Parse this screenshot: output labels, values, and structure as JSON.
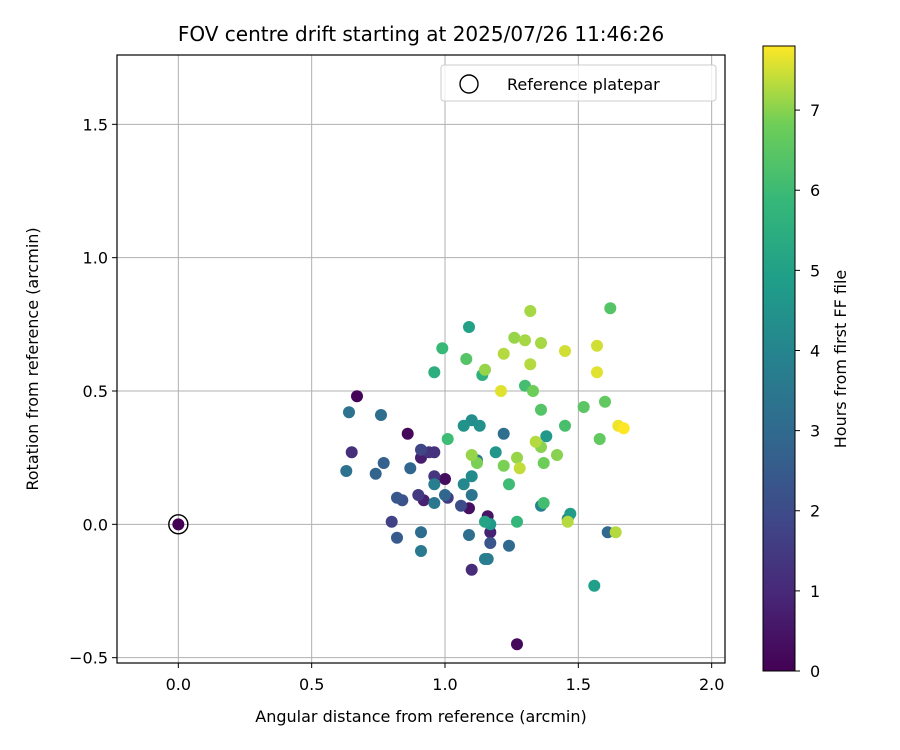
{
  "chart_data": {
    "type": "scatter",
    "title": "FOV centre drift starting at 2025/07/26 11:46:26",
    "xlabel": "Angular distance from reference (arcmin)",
    "ylabel": "Rotation from reference (arcmin)",
    "xlim": [
      -0.23,
      2.05
    ],
    "ylim": [
      -0.52,
      1.76
    ],
    "xticks": [
      0.0,
      0.5,
      1.0,
      1.5,
      2.0
    ],
    "xtick_labels": [
      "0.0",
      "0.5",
      "1.0",
      "1.5",
      "2.0"
    ],
    "yticks": [
      -0.5,
      0.0,
      0.5,
      1.0,
      1.5
    ],
    "ytick_labels": [
      "−0.5",
      "0.0",
      "0.5",
      "1.0",
      "1.5"
    ],
    "grid": true,
    "legend": {
      "position": "top-right",
      "entries": [
        "Reference platepar"
      ]
    },
    "reference": {
      "x": 0.0,
      "y": 0.0,
      "h": 0.0
    },
    "colorbar": {
      "label": "Hours from first FF file",
      "colormap": "viridis",
      "range": [
        0,
        7.8
      ],
      "ticks": [
        0,
        1,
        2,
        3,
        4,
        5,
        6,
        7
      ],
      "tick_labels": [
        "0",
        "1",
        "2",
        "3",
        "4",
        "5",
        "6",
        "7"
      ]
    },
    "series": [
      {
        "color_by": "hours",
        "points": [
          {
            "x": 0.67,
            "y": 0.48,
            "h": 0.1
          },
          {
            "x": 0.86,
            "y": 0.34,
            "h": 0.2
          },
          {
            "x": 1.27,
            "y": -0.45,
            "h": 0.2
          },
          {
            "x": 1.0,
            "y": 0.17,
            "h": 0.3
          },
          {
            "x": 1.09,
            "y": 0.06,
            "h": 0.4
          },
          {
            "x": 1.16,
            "y": 0.03,
            "h": 0.5
          },
          {
            "x": 0.91,
            "y": 0.25,
            "h": 0.7
          },
          {
            "x": 0.92,
            "y": 0.09,
            "h": 0.8
          },
          {
            "x": 1.17,
            "y": -0.03,
            "h": 0.8
          },
          {
            "x": 1.1,
            "y": -0.17,
            "h": 1.1
          },
          {
            "x": 0.65,
            "y": 0.27,
            "h": 1.2
          },
          {
            "x": 0.94,
            "y": 0.27,
            "h": 1.3
          },
          {
            "x": 0.96,
            "y": 0.27,
            "h": 1.3
          },
          {
            "x": 0.96,
            "y": 0.18,
            "h": 1.4
          },
          {
            "x": 0.9,
            "y": 0.11,
            "h": 1.5
          },
          {
            "x": 1.01,
            "y": 0.1,
            "h": 1.5
          },
          {
            "x": 0.8,
            "y": 0.01,
            "h": 1.7
          },
          {
            "x": 0.91,
            "y": 0.28,
            "h": 1.8
          },
          {
            "x": 1.06,
            "y": 0.07,
            "h": 2.0
          },
          {
            "x": 0.84,
            "y": 0.09,
            "h": 2.2
          },
          {
            "x": 1.17,
            "y": -0.07,
            "h": 2.3
          },
          {
            "x": 0.82,
            "y": 0.1,
            "h": 2.4
          },
          {
            "x": 0.82,
            "y": -0.05,
            "h": 2.5
          },
          {
            "x": 0.77,
            "y": 0.23,
            "h": 2.7
          },
          {
            "x": 0.74,
            "y": 0.19,
            "h": 2.8
          },
          {
            "x": 0.87,
            "y": 0.21,
            "h": 2.9
          },
          {
            "x": 1.0,
            "y": 0.11,
            "h": 2.9
          },
          {
            "x": 1.24,
            "y": -0.08,
            "h": 3.0
          },
          {
            "x": 1.61,
            "y": -0.03,
            "h": 3.0
          },
          {
            "x": 0.91,
            "y": -0.03,
            "h": 3.1
          },
          {
            "x": 1.09,
            "y": -0.04,
            "h": 3.2
          },
          {
            "x": 1.22,
            "y": 0.34,
            "h": 3.2
          },
          {
            "x": 0.76,
            "y": 0.41,
            "h": 3.2
          },
          {
            "x": 0.64,
            "y": 0.42,
            "h": 3.3
          },
          {
            "x": 0.63,
            "y": 0.2,
            "h": 3.3
          },
          {
            "x": 1.1,
            "y": 0.11,
            "h": 3.4
          },
          {
            "x": 1.12,
            "y": 0.24,
            "h": 3.4
          },
          {
            "x": 0.96,
            "y": 0.08,
            "h": 3.5
          },
          {
            "x": 0.91,
            "y": -0.1,
            "h": 3.6
          },
          {
            "x": 1.16,
            "y": -0.13,
            "h": 3.6
          },
          {
            "x": 1.15,
            "y": -0.13,
            "h": 3.7
          },
          {
            "x": 0.96,
            "y": 0.15,
            "h": 3.7
          },
          {
            "x": 1.46,
            "y": 0.02,
            "h": 3.8
          },
          {
            "x": 1.36,
            "y": 0.07,
            "h": 3.9
          },
          {
            "x": 1.07,
            "y": 0.15,
            "h": 4.1
          },
          {
            "x": 1.1,
            "y": 0.18,
            "h": 4.2
          },
          {
            "x": 1.1,
            "y": 0.39,
            "h": 4.3
          },
          {
            "x": 1.13,
            "y": 0.37,
            "h": 4.4
          },
          {
            "x": 1.07,
            "y": 0.37,
            "h": 4.5
          },
          {
            "x": 1.19,
            "y": 0.27,
            "h": 4.6
          },
          {
            "x": 1.17,
            "y": 0.0,
            "h": 4.7
          },
          {
            "x": 1.38,
            "y": 0.33,
            "h": 4.7
          },
          {
            "x": 1.47,
            "y": 0.04,
            "h": 4.8
          },
          {
            "x": 1.56,
            "y": -0.23,
            "h": 4.9
          },
          {
            "x": 1.09,
            "y": 0.74,
            "h": 5.0
          },
          {
            "x": 1.15,
            "y": 0.01,
            "h": 5.1
          },
          {
            "x": 0.96,
            "y": 0.57,
            "h": 5.5
          },
          {
            "x": 1.14,
            "y": 0.56,
            "h": 5.6
          },
          {
            "x": 1.27,
            "y": 0.01,
            "h": 5.8
          },
          {
            "x": 0.99,
            "y": 0.66,
            "h": 5.9
          },
          {
            "x": 1.01,
            "y": 0.32,
            "h": 6.0
          },
          {
            "x": 1.24,
            "y": 0.15,
            "h": 6.0
          },
          {
            "x": 1.37,
            "y": 0.08,
            "h": 6.1
          },
          {
            "x": 1.3,
            "y": 0.52,
            "h": 6.1
          },
          {
            "x": 1.45,
            "y": 0.37,
            "h": 6.2
          },
          {
            "x": 1.62,
            "y": 0.81,
            "h": 6.4
          },
          {
            "x": 1.08,
            "y": 0.62,
            "h": 6.4
          },
          {
            "x": 1.36,
            "y": 0.43,
            "h": 6.4
          },
          {
            "x": 1.52,
            "y": 0.44,
            "h": 6.5
          },
          {
            "x": 1.6,
            "y": 0.46,
            "h": 6.6
          },
          {
            "x": 1.58,
            "y": 0.32,
            "h": 6.6
          },
          {
            "x": 1.33,
            "y": 0.5,
            "h": 6.8
          },
          {
            "x": 1.37,
            "y": 0.23,
            "h": 6.8
          },
          {
            "x": 1.22,
            "y": 0.22,
            "h": 6.9
          },
          {
            "x": 1.12,
            "y": 0.23,
            "h": 6.9
          },
          {
            "x": 1.42,
            "y": 0.26,
            "h": 7.0
          },
          {
            "x": 1.36,
            "y": 0.29,
            "h": 7.0
          },
          {
            "x": 1.15,
            "y": 0.58,
            "h": 7.1
          },
          {
            "x": 1.27,
            "y": 0.25,
            "h": 7.1
          },
          {
            "x": 1.1,
            "y": 0.26,
            "h": 7.1
          },
          {
            "x": 1.26,
            "y": 0.7,
            "h": 7.1
          },
          {
            "x": 1.3,
            "y": 0.69,
            "h": 7.2
          },
          {
            "x": 1.32,
            "y": 0.8,
            "h": 7.2
          },
          {
            "x": 1.36,
            "y": 0.68,
            "h": 7.2
          },
          {
            "x": 1.22,
            "y": 0.64,
            "h": 7.3
          },
          {
            "x": 1.32,
            "y": 0.6,
            "h": 7.3
          },
          {
            "x": 1.34,
            "y": 0.31,
            "h": 7.3
          },
          {
            "x": 1.46,
            "y": 0.01,
            "h": 7.3
          },
          {
            "x": 1.64,
            "y": -0.03,
            "h": 7.3
          },
          {
            "x": 1.28,
            "y": 0.21,
            "h": 7.4
          },
          {
            "x": 1.45,
            "y": 0.65,
            "h": 7.5
          },
          {
            "x": 1.57,
            "y": 0.67,
            "h": 7.5
          },
          {
            "x": 1.21,
            "y": 0.5,
            "h": 7.6
          },
          {
            "x": 1.57,
            "y": 0.57,
            "h": 7.6
          },
          {
            "x": 1.65,
            "y": 0.37,
            "h": 7.7
          },
          {
            "x": 1.67,
            "y": 0.36,
            "h": 7.8
          }
        ]
      }
    ]
  }
}
